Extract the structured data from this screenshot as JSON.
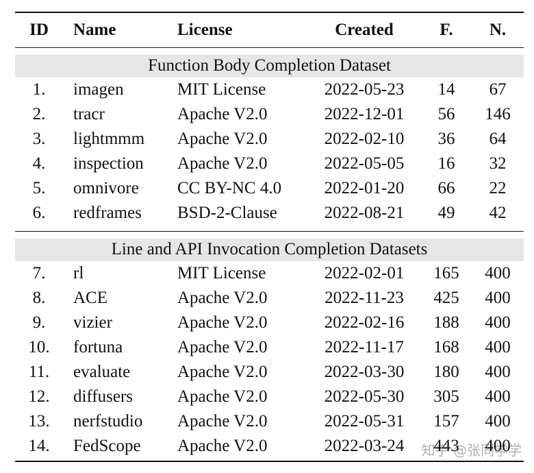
{
  "table": {
    "header": [
      "ID",
      "Name",
      "License",
      "Created",
      "F.",
      "N."
    ],
    "sections": [
      {
        "title": "Function Body Completion Dataset",
        "rows": [
          [
            "1.",
            "imagen",
            "MIT License",
            "2022-05-23",
            14,
            67
          ],
          [
            "2.",
            "tracr",
            "Apache V2.0",
            "2022-12-01",
            56,
            146
          ],
          [
            "3.",
            "lightmmm",
            "Apache V2.0",
            "2022-02-10",
            36,
            64
          ],
          [
            "4.",
            "inspection",
            "Apache V2.0",
            "2022-05-05",
            16,
            32
          ],
          [
            "5.",
            "omnivore",
            "CC BY-NC 4.0",
            "2022-01-20",
            66,
            22
          ],
          [
            "6.",
            "redframes",
            "BSD-2-Clause",
            "2022-08-21",
            49,
            42
          ]
        ]
      },
      {
        "title": "Line and API Invocation Completion Datasets",
        "rows": [
          [
            "7.",
            "rl",
            "MIT License",
            "2022-02-01",
            165,
            400
          ],
          [
            "8.",
            "ACE",
            "Apache V2.0",
            "2022-11-23",
            425,
            400
          ],
          [
            "9.",
            "vizier",
            "Apache V2.0",
            "2022-02-16",
            188,
            400
          ],
          [
            "10.",
            "fortuna",
            "Apache V2.0",
            "2022-11-17",
            168,
            400
          ],
          [
            "11.",
            "evaluate",
            "Apache V2.0",
            "2022-03-30",
            180,
            400
          ],
          [
            "12.",
            "diffusers",
            "Apache V2.0",
            "2022-05-30",
            305,
            400
          ],
          [
            "13.",
            "nerfstudio",
            "Apache V2.0",
            "2022-05-31",
            157,
            400
          ],
          [
            "14.",
            "FedScope",
            "Apache V2.0",
            "2022-03-24",
            443,
            400
          ]
        ]
      }
    ]
  },
  "watermark": "知乎 @张同学学"
}
